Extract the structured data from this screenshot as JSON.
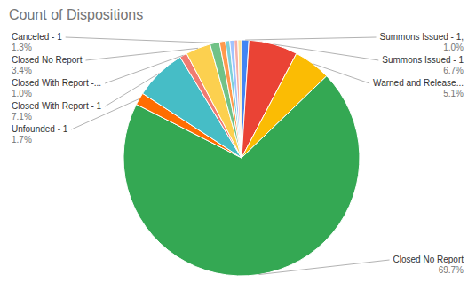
{
  "chart_data": {
    "type": "pie",
    "title": "Count of Dispositions",
    "categories": [
      "Summons Issued - 1,",
      "Summons Issued - 1",
      "Warned and Release...",
      "Closed No Report",
      "Unfounded - 1",
      "Closed With Report - 1",
      "Closed With Report -...",
      "Closed No Report",
      "Canceled - 1",
      null,
      null,
      null,
      null,
      null
    ],
    "values": [
      1.0,
      6.7,
      5.1,
      69.7,
      1.7,
      7.1,
      1.0,
      3.4,
      1.3,
      0.8,
      0.6,
      0.6,
      0.5,
      0.5
    ],
    "value_labels": [
      "1.0%",
      "6.7%",
      "5.1%",
      "69.7%",
      "1.7%",
      "7.1%",
      "1.0%",
      "3.4%",
      "1.3%",
      null,
      null,
      null,
      null,
      null
    ],
    "colors": [
      "#4285f4",
      "#ea4335",
      "#fbbc04",
      "#34a853",
      "#ff6d01",
      "#46bdc6",
      "#f07b72",
      "#fcd04f",
      "#71c287",
      "#ff994d",
      "#7ed1d7",
      "#a0c3ff",
      "#f6aea9",
      "#fde49b"
    ],
    "data_labels": true
  }
}
